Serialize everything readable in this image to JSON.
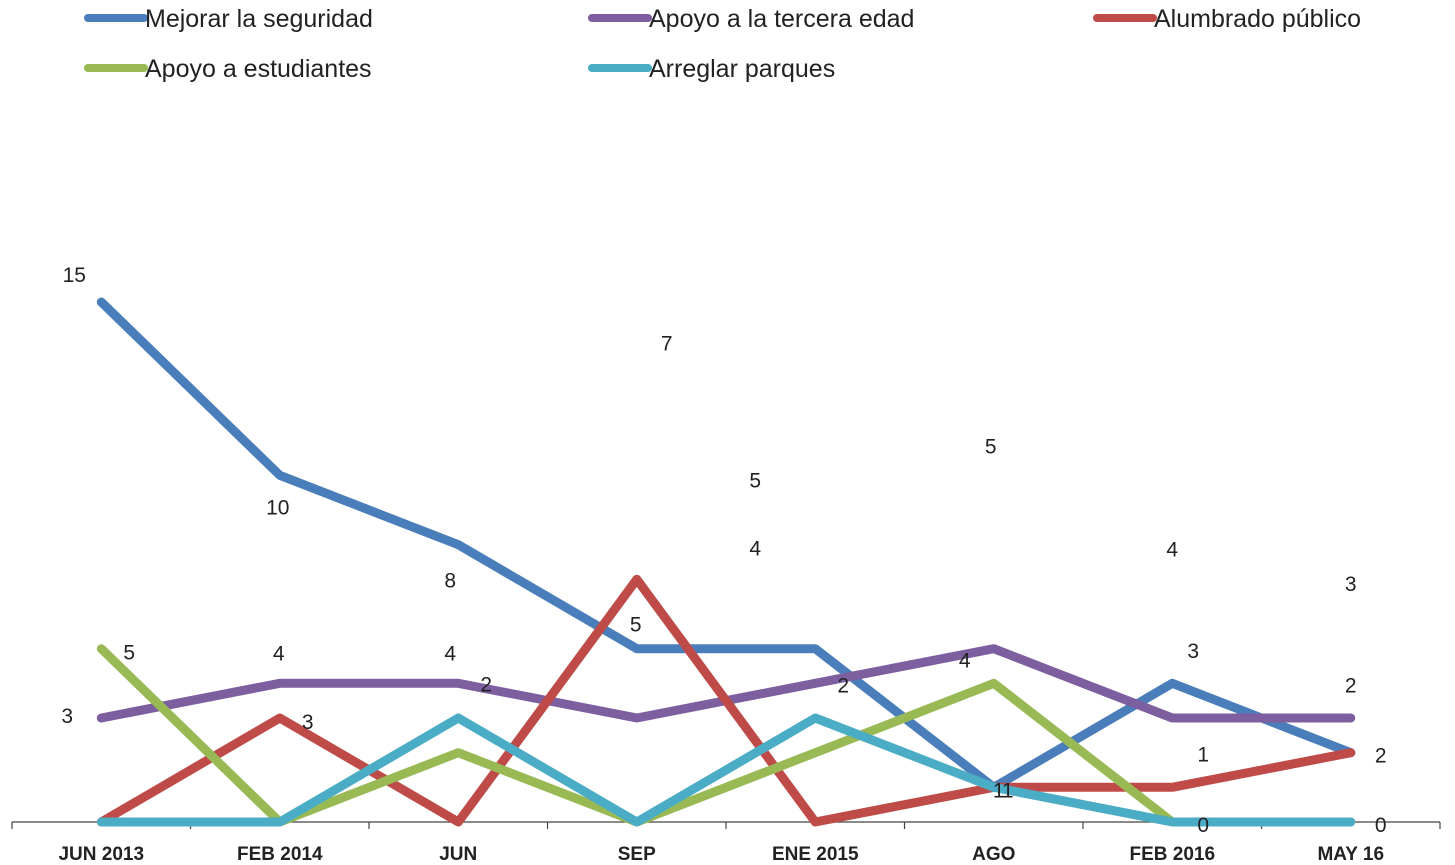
{
  "chart_data": {
    "type": "line",
    "categories": [
      "JUN 2013",
      "FEB 2014",
      "JUN",
      "SEP",
      "ENE 2015",
      "AGO",
      "FEB 2016",
      "MAY 16"
    ],
    "series": [
      {
        "name": "Mejorar la seguridad",
        "color": "#4a7ebb",
        "values": [
          15,
          10,
          8,
          5,
          5,
          1,
          4,
          2
        ]
      },
      {
        "name": "Apoyo a la tercera edad",
        "color": "#7d5fa0",
        "values": [
          3,
          4,
          4,
          3,
          4,
          5,
          3,
          3
        ]
      },
      {
        "name": "Alumbrado público",
        "color": "#be4b48",
        "values": [
          0,
          3,
          0,
          7,
          0,
          1,
          1,
          2
        ]
      },
      {
        "name": "Apoyo a estudiantes",
        "color": "#98b954",
        "values": [
          5,
          0,
          2,
          0,
          2,
          4,
          0,
          0
        ]
      },
      {
        "name": "Arreglar parques",
        "color": "#4bacc6",
        "values": [
          0,
          0,
          3,
          0,
          3,
          1,
          0,
          0
        ]
      }
    ],
    "data_labels": [
      {
        "text": "15",
        "category": 0,
        "value": 15
      },
      {
        "text": "3",
        "category": 0,
        "value": 3
      },
      {
        "text": "5",
        "category": 0,
        "value": 5
      },
      {
        "text": "10",
        "category": 1,
        "value": 10
      },
      {
        "text": "4",
        "category": 1,
        "value": 4
      },
      {
        "text": "3",
        "category": 1,
        "value": 3
      },
      {
        "text": "8",
        "category": 2,
        "value": 8
      },
      {
        "text": "4",
        "category": 2,
        "value": 4
      },
      {
        "text": "2",
        "category": 2,
        "value": 2
      },
      {
        "text": "7",
        "category": 3,
        "value": 7
      },
      {
        "text": "5",
        "category": 3,
        "value": 5
      },
      {
        "text": "5",
        "category": 4,
        "value": 5
      },
      {
        "text": "4",
        "category": 4,
        "value": 4
      },
      {
        "text": "2",
        "category": 4,
        "value": 2
      },
      {
        "text": "5",
        "category": 5,
        "value": 5
      },
      {
        "text": "4",
        "category": 5,
        "value": 4
      },
      {
        "text": "1",
        "category": 5,
        "value": 1
      },
      {
        "text": "1",
        "category": 5,
        "value": 1
      },
      {
        "text": "4",
        "category": 6,
        "value": 4
      },
      {
        "text": "3",
        "category": 6,
        "value": 3
      },
      {
        "text": "1",
        "category": 6,
        "value": 1
      },
      {
        "text": "0",
        "category": 6,
        "value": 0
      },
      {
        "text": "3",
        "category": 7,
        "value": 3
      },
      {
        "text": "2",
        "category": 7,
        "value": 2
      },
      {
        "text": "2",
        "category": 7,
        "value": 2
      },
      {
        "text": "0",
        "category": 7,
        "value": 0
      }
    ],
    "ylim": [
      0,
      15
    ],
    "grid": false,
    "legend_position": "top"
  }
}
